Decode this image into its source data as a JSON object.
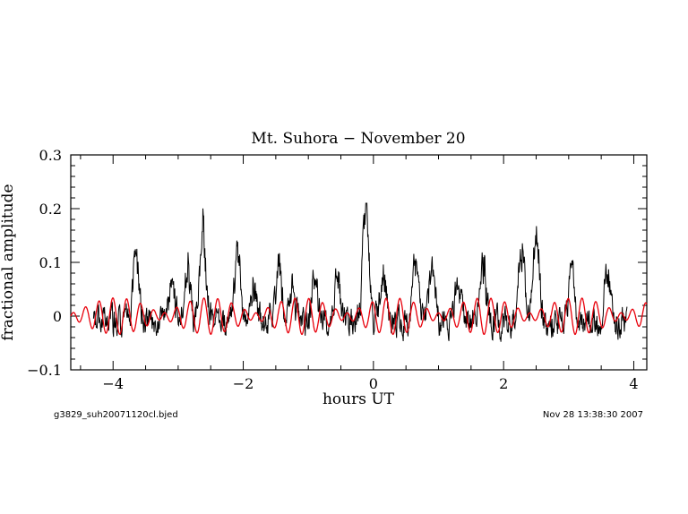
{
  "chart_data": {
    "type": "line",
    "title": "Mt. Suhora  − November 20",
    "xlabel": "hours UT",
    "ylabel": "fractional  amplitude",
    "xlim": [
      -4.65,
      4.2
    ],
    "ylim": [
      -0.1,
      0.3
    ],
    "x_ticks": [
      -4,
      -2,
      0,
      2,
      4
    ],
    "x_tick_labels": [
      "−4",
      "−2",
      "0",
      "2",
      "4"
    ],
    "y_ticks": [
      -0.1,
      0,
      0.1,
      0.2,
      0.3
    ],
    "y_tick_labels": [
      "−0.1",
      "0",
      "0.1",
      "0.2",
      "0.3"
    ],
    "grid": false,
    "series": [
      {
        "color": "#000000",
        "x_range": [
          -4.3,
          3.9
        ],
        "baseline": -0.01,
        "noise_amplitude": 0.022,
        "peaks": [
          {
            "x": -3.65,
            "y": 0.1
          },
          {
            "x": -3.1,
            "y": 0.05
          },
          {
            "x": -2.85,
            "y": 0.09
          },
          {
            "x": -2.62,
            "y": 0.16
          },
          {
            "x": -2.08,
            "y": 0.125
          },
          {
            "x": -1.85,
            "y": 0.06
          },
          {
            "x": -1.45,
            "y": 0.095
          },
          {
            "x": -1.25,
            "y": 0.05
          },
          {
            "x": -0.9,
            "y": 0.08
          },
          {
            "x": -0.55,
            "y": 0.065
          },
          {
            "x": -0.12,
            "y": 0.205
          },
          {
            "x": 0.15,
            "y": 0.085
          },
          {
            "x": 0.65,
            "y": 0.1
          },
          {
            "x": 0.9,
            "y": 0.08
          },
          {
            "x": 1.3,
            "y": 0.07
          },
          {
            "x": 1.68,
            "y": 0.105
          },
          {
            "x": 2.28,
            "y": 0.13
          },
          {
            "x": 2.5,
            "y": 0.155
          },
          {
            "x": 3.05,
            "y": 0.1
          },
          {
            "x": 3.6,
            "y": 0.08
          }
        ]
      },
      {
        "color": "#e8000b",
        "x_range": [
          -4.65,
          4.2
        ],
        "offset": 0.0,
        "components": [
          {
            "amplitude": 0.02,
            "period_hours": 0.2
          },
          {
            "amplitude": 0.014,
            "period_hours": 0.233
          }
        ]
      }
    ]
  },
  "footer": {
    "left": "g3829_suh20071120cl.bjed",
    "right": "Nov 28 13:38:30 2007"
  }
}
